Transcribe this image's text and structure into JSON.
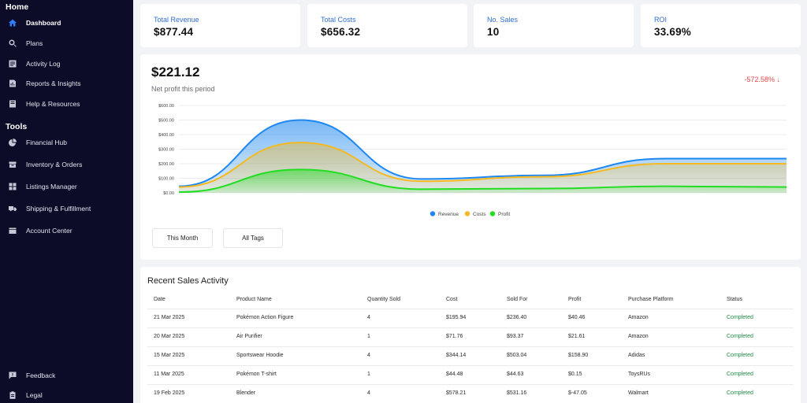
{
  "sidebar": {
    "home_title": "Home",
    "tools_title": "Tools",
    "home_items": [
      {
        "label": "Dashboard",
        "icon": "home-icon"
      },
      {
        "label": "Plans",
        "icon": "search-icon"
      },
      {
        "label": "Activity Log",
        "icon": "log-icon"
      },
      {
        "label": "Reports & Insights",
        "icon": "report-icon"
      },
      {
        "label": "Help & Resources",
        "icon": "book-icon"
      }
    ],
    "tool_items": [
      {
        "label": "Financial Hub",
        "icon": "pie-chart-icon"
      },
      {
        "label": "Inventory & Orders",
        "icon": "inventory-icon"
      },
      {
        "label": "Listings Manager",
        "icon": "grid-icon"
      },
      {
        "label": "Shipping & Fulfillment",
        "icon": "truck-icon"
      },
      {
        "label": "Account Center",
        "icon": "wallet-icon"
      }
    ],
    "bottom_items": [
      {
        "label": "Feedback",
        "icon": "feedback-icon"
      },
      {
        "label": "Legal",
        "icon": "clipboard-icon"
      }
    ]
  },
  "stats": [
    {
      "label": "Total Revenue",
      "value": "$877.44"
    },
    {
      "label": "Total Costs",
      "value": "$656.32"
    },
    {
      "label": "No. Sales",
      "value": "10"
    },
    {
      "label": "ROI",
      "value": "33.69%"
    }
  ],
  "profit": {
    "amount": "$221.12",
    "subtitle": "Net profit this period",
    "change": "-572.58% ↓"
  },
  "filters": {
    "period": "This Month",
    "tags": "All Tags"
  },
  "colors": {
    "revenue": "#1e88f0",
    "costs": "#f5b921",
    "profit": "#22dd22",
    "change_negative": "#e04848",
    "status_completed": "#1f8a43"
  },
  "chart_data": {
    "type": "area",
    "title": "",
    "xlabel": "",
    "ylabel": "",
    "ylim": [
      0,
      600
    ],
    "y_ticks": [
      "$0.00",
      "$100.00",
      "$200.00",
      "$300.00",
      "$400.00",
      "$500.00",
      "$600.00"
    ],
    "x_points": [
      0,
      1,
      2,
      3,
      4,
      5
    ],
    "legend_position": "bottom",
    "grid": true,
    "series": [
      {
        "name": "Revenue",
        "values": [
          45,
          500,
          95,
          120,
          235,
          235
        ]
      },
      {
        "name": "Costs",
        "values": [
          40,
          345,
          80,
          110,
          200,
          200
        ]
      },
      {
        "name": "Profit",
        "values": [
          5,
          160,
          25,
          30,
          45,
          40
        ]
      }
    ]
  },
  "table": {
    "title": "Recent Sales Activity",
    "columns": [
      "Date",
      "Product Name",
      "Quantity Sold",
      "Cost",
      "Sold For",
      "Profit",
      "Purchase Platform",
      "Status"
    ],
    "rows": [
      [
        "21 Mar 2025",
        "Pokémon Action Figure",
        "4",
        "$195.94",
        "$236.40",
        "$40.46",
        "Amazon",
        "Completed"
      ],
      [
        "20 Mar 2025",
        "Air Purifier",
        "1",
        "$71.76",
        "$93.37",
        "$21.61",
        "Amazon",
        "Completed"
      ],
      [
        "15 Mar 2025",
        "Sportswear Hoodie",
        "4",
        "$344.14",
        "$503.04",
        "$158.90",
        "Adidas",
        "Completed"
      ],
      [
        "11 Mar 2025",
        "Pokémon T-shirt",
        "1",
        "$44.48",
        "$44.63",
        "$0.15",
        "ToysRUs",
        "Completed"
      ],
      [
        "19 Feb 2025",
        "Blender",
        "4",
        "$578.21",
        "$531.16",
        "$-47.05",
        "Walmart",
        "Completed"
      ]
    ]
  }
}
